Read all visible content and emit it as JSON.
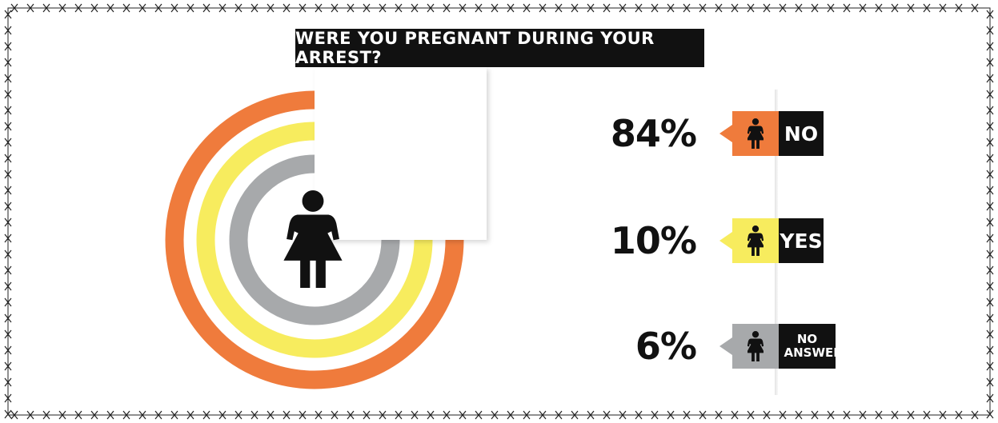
{
  "title": "WERE YOU PREGNANT DURING YOUR ARREST?",
  "chart_data": {
    "type": "radial-bar",
    "title": "WERE YOU PREGNANT DURING YOUR ARREST?",
    "series": [
      {
        "label": "NO",
        "value": 84,
        "display": "84%",
        "color": "#ef7b3c"
      },
      {
        "label": "YES",
        "value": 10,
        "display": "10%",
        "color": "#f7ec5e"
      },
      {
        "label": "NO ANSWER",
        "value": 6,
        "display": "6%",
        "color": "#a7a9ab"
      }
    ],
    "legend": "right"
  },
  "icons": {
    "center": "woman-icon",
    "legend": "woman-icon"
  }
}
